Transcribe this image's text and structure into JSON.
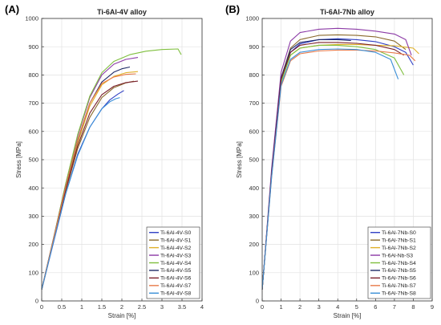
{
  "chart_data": [
    {
      "type": "line",
      "panel_label": "(A)",
      "title": "Ti-6Al-4V alloy",
      "xlabel": "Strain [%]",
      "ylabel": "Stress [MPa]",
      "xlim": [
        0,
        4
      ],
      "ylim": [
        0,
        1000
      ],
      "xticks": [
        0,
        0.5,
        1,
        1.5,
        2,
        2.5,
        3,
        3.5,
        4
      ],
      "xtick_labels": [
        "0",
        "0.5",
        "1",
        "1.5",
        "2",
        "2.5",
        "3",
        "3.5",
        "4"
      ],
      "yticks": [
        0,
        100,
        200,
        300,
        400,
        500,
        600,
        700,
        800,
        900,
        1000
      ],
      "ytick_labels": [
        "0",
        "100",
        "200",
        "300",
        "400",
        "500",
        "600",
        "700",
        "800",
        "900",
        "1000"
      ],
      "grid": true,
      "legend_position": "bottom-right",
      "series": [
        {
          "name": "Ti-6Al-4V-S0",
          "color": "#2f3fc4",
          "x": [
            0,
            0.3,
            0.6,
            0.9,
            1.2,
            1.5,
            1.7,
            1.9,
            2.05
          ],
          "y": [
            40,
            210,
            380,
            520,
            615,
            680,
            712,
            732,
            745
          ]
        },
        {
          "name": "Ti-6Al-4V-S1",
          "color": "#8a6a2c",
          "x": [
            0,
            0.3,
            0.6,
            0.9,
            1.2,
            1.5,
            1.8,
            2.1,
            2.3
          ],
          "y": [
            40,
            215,
            390,
            540,
            650,
            720,
            755,
            772,
            778
          ]
        },
        {
          "name": "Ti-6Al-4V-S2",
          "color": "#e0b12a",
          "x": [
            0,
            0.3,
            0.6,
            0.9,
            1.2,
            1.5,
            1.8,
            2.1,
            2.4
          ],
          "y": [
            40,
            220,
            400,
            560,
            690,
            765,
            795,
            808,
            812
          ]
        },
        {
          "name": "Ti-6Al-4V-S3",
          "color": "#8b3aa6",
          "x": [
            0,
            0.3,
            0.6,
            0.9,
            1.2,
            1.5,
            1.8,
            2.1,
            2.4
          ],
          "y": [
            40,
            225,
            415,
            585,
            720,
            800,
            838,
            855,
            862
          ]
        },
        {
          "name": "Ti-6Al-4V-S4",
          "color": "#7fbf3e",
          "x": [
            0,
            0.3,
            0.6,
            0.9,
            1.2,
            1.5,
            1.8,
            2.2,
            2.6,
            3.0,
            3.4,
            3.48
          ],
          "y": [
            40,
            225,
            415,
            590,
            725,
            808,
            848,
            872,
            884,
            890,
            892,
            872
          ]
        },
        {
          "name": "Ti-6Al-4V-S5",
          "color": "#1e2a66",
          "x": [
            0,
            0.3,
            0.6,
            0.9,
            1.2,
            1.5,
            1.8,
            2.0,
            2.2
          ],
          "y": [
            40,
            222,
            405,
            570,
            700,
            775,
            810,
            822,
            828
          ]
        },
        {
          "name": "Ti-6Al-4V-S6",
          "color": "#7a1f2b",
          "x": [
            0,
            0.3,
            0.6,
            0.9,
            1.2,
            1.5,
            1.8,
            2.1,
            2.4
          ],
          "y": [
            40,
            218,
            395,
            550,
            665,
            730,
            760,
            773,
            778
          ]
        },
        {
          "name": "Ti-6Al-4V-S7",
          "color": "#e87a4a",
          "x": [
            0,
            0.3,
            0.6,
            0.9,
            1.2,
            1.5,
            1.8,
            2.1,
            2.35
          ],
          "y": [
            40,
            222,
            405,
            572,
            700,
            770,
            793,
            802,
            804
          ]
        },
        {
          "name": "Ti-6Al-4V-S8",
          "color": "#3a8fd8",
          "x": [
            0,
            0.3,
            0.6,
            0.9,
            1.2,
            1.5,
            1.7,
            1.85,
            1.95
          ],
          "y": [
            40,
            212,
            380,
            515,
            615,
            680,
            705,
            716,
            720
          ]
        }
      ]
    },
    {
      "type": "line",
      "panel_label": "(B)",
      "title": "Ti-6Al-7Nb alloy",
      "xlabel": "Strain [%]",
      "ylabel": "Stress [MPa]",
      "xlim": [
        0,
        9
      ],
      "ylim": [
        0,
        1000
      ],
      "xticks": [
        0,
        1,
        2,
        3,
        4,
        5,
        6,
        7,
        8,
        9
      ],
      "xtick_labels": [
        "0",
        "1",
        "2",
        "3",
        "4",
        "5",
        "6",
        "7",
        "8",
        "9"
      ],
      "yticks": [
        0,
        100,
        200,
        300,
        400,
        500,
        600,
        700,
        800,
        900,
        1000
      ],
      "ytick_labels": [
        "0",
        "100",
        "200",
        "300",
        "400",
        "500",
        "600",
        "700",
        "800",
        "900",
        "1000"
      ],
      "grid": true,
      "legend_position": "bottom-right",
      "series": [
        {
          "name": "Ti-6Al-7Nb-S0",
          "color": "#2f3fc4",
          "x": [
            0,
            0.5,
            1.0,
            1.5,
            2.0,
            3.0,
            4.0,
            5.0,
            6.0,
            7.0,
            7.6,
            8.0
          ],
          "y": [
            40,
            450,
            780,
            880,
            910,
            925,
            928,
            925,
            918,
            900,
            880,
            835
          ]
        },
        {
          "name": "Ti-6Al-7Nb-S1",
          "color": "#8a6a2c",
          "x": [
            0,
            0.5,
            1.0,
            1.5,
            2.0,
            3.0,
            4.0,
            5.0,
            6.0,
            7.0,
            7.6
          ],
          "y": [
            40,
            455,
            790,
            895,
            925,
            940,
            942,
            940,
            935,
            920,
            890
          ]
        },
        {
          "name": "Ti-6Al-7Nb-S2",
          "color": "#e0b12a",
          "x": [
            0,
            0.5,
            1.0,
            1.5,
            2.0,
            3.0,
            4.0,
            5.0,
            6.0,
            7.0,
            8.0,
            8.3
          ],
          "y": [
            40,
            450,
            775,
            870,
            895,
            905,
            908,
            908,
            905,
            903,
            895,
            875
          ]
        },
        {
          "name": "Ti-6Al-Nb-S3",
          "color": "#8b3aa6",
          "x": [
            0,
            0.5,
            1.0,
            1.5,
            2.0,
            3.0,
            4.0,
            5.0,
            6.0,
            7.0,
            7.6,
            7.9
          ],
          "y": [
            40,
            470,
            810,
            920,
            950,
            962,
            965,
            962,
            955,
            945,
            925,
            870
          ]
        },
        {
          "name": "Ti-6Al-7Nb-S4",
          "color": "#7fbf3e",
          "x": [
            0,
            0.5,
            1.0,
            1.5,
            2.0,
            3.0,
            4.0,
            5.0,
            6.0,
            7.0,
            7.5
          ],
          "y": [
            40,
            448,
            775,
            870,
            895,
            905,
            905,
            900,
            890,
            860,
            800
          ]
        },
        {
          "name": "Ti-6Al-7Nb-S5",
          "color": "#1e2a66",
          "x": [
            0,
            0.5,
            1.0,
            1.5,
            2.0,
            3.0,
            4.0,
            4.7
          ],
          "y": [
            40,
            455,
            790,
            890,
            915,
            925,
            925,
            922
          ]
        },
        {
          "name": "Ti-6Al-7Nb-S6",
          "color": "#7a1f2b",
          "x": [
            0,
            0.5,
            1.0,
            1.5,
            2.0,
            3.0,
            4.0,
            5.0,
            6.0,
            7.0,
            7.5
          ],
          "y": [
            40,
            450,
            785,
            880,
            905,
            915,
            915,
            912,
            905,
            890,
            870
          ]
        },
        {
          "name": "Ti-6Al-7Nb-S7",
          "color": "#e87a4a",
          "x": [
            0,
            0.5,
            1.0,
            1.5,
            2.0,
            3.0,
            4.0,
            5.0,
            6.0,
            7.0,
            7.8,
            8.1
          ],
          "y": [
            40,
            440,
            760,
            850,
            875,
            885,
            888,
            888,
            885,
            878,
            870,
            850
          ]
        },
        {
          "name": "Ti-6Al-7Nb-S8",
          "color": "#3a8fd8",
          "x": [
            0,
            0.5,
            1.0,
            1.5,
            2.0,
            3.0,
            4.0,
            5.0,
            6.0,
            6.8,
            7.2
          ],
          "y": [
            40,
            440,
            765,
            855,
            880,
            890,
            892,
            890,
            880,
            855,
            785
          ]
        }
      ]
    }
  ]
}
